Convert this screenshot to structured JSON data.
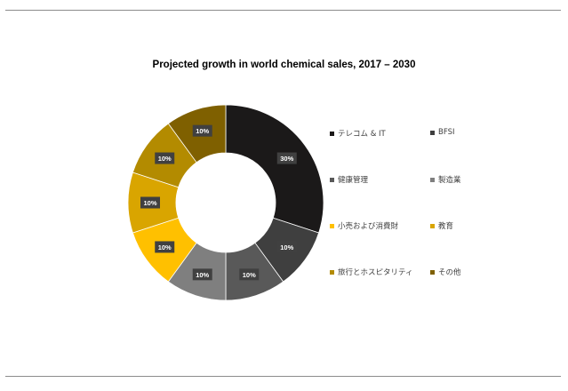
{
  "chart_data": {
    "type": "pie",
    "title": "Projected growth in world chemical sales, 2017 – 2030",
    "categories": [
      "テレコム & IT",
      "BFSI",
      "健康管理",
      "製造業",
      "小売および消費財",
      "教育",
      "旅行とホスピタリティ",
      "その他"
    ],
    "values": [
      30,
      10,
      10,
      10,
      10,
      10,
      10,
      10
    ],
    "data_labels": [
      "30%",
      "10%",
      "10%",
      "10%",
      "10%",
      "10%",
      "10%",
      "10%"
    ],
    "colors": [
      "#1b1919",
      "#3f3f3f",
      "#595959",
      "#7f7f7f",
      "#ffc000",
      "#d9a500",
      "#b38b00",
      "#7f6000"
    ],
    "donut": true,
    "legend_position": "right"
  }
}
